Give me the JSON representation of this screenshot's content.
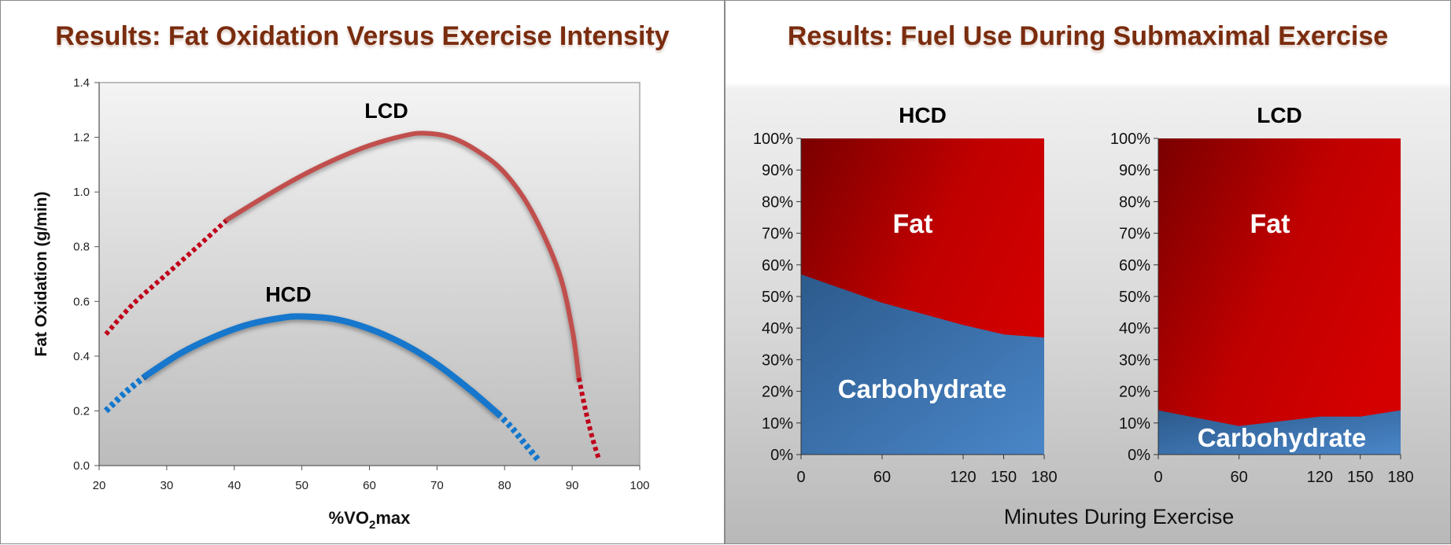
{
  "left_panel": {
    "title": "Results: Fat Oxidation Versus Exercise Intensity"
  },
  "right_panel": {
    "title": "Results: Fuel Use During Submaximal Exercise"
  },
  "colors": {
    "lcd_line": "#c0504d",
    "lcd_dotted": "#c0001a",
    "hcd_line": "#1277cc",
    "fat_fill": "#c00000",
    "carb_fill": "#3a6ea8",
    "title_color": "#7a2c0e"
  },
  "chart_data": [
    {
      "type": "line",
      "title": "",
      "xlabel": "%VO2max",
      "xlabel_main": "%VO",
      "xlabel_sub": "2",
      "xlabel_tail": "max",
      "ylabel": "Fat Oxidation (g/min)",
      "xlim": [
        20,
        100
      ],
      "ylim": [
        0,
        1.4
      ],
      "xticks": [
        20,
        30,
        40,
        50,
        60,
        70,
        80,
        90,
        100
      ],
      "yticks": [
        "0.0",
        "0.2",
        "0.4",
        "0.6",
        "0.8",
        "1.0",
        "1.2",
        "1.4"
      ],
      "grid": false,
      "series": [
        {
          "name": "LCD",
          "dotted_start": [
            [
              21,
              0.48
            ],
            [
              25,
              0.59
            ],
            [
              30,
              0.7
            ],
            [
              35,
              0.81
            ],
            [
              39,
              0.9
            ]
          ],
          "solid": [
            [
              39,
              0.9
            ],
            [
              45,
              0.99
            ],
            [
              50,
              1.06
            ],
            [
              55,
              1.12
            ],
            [
              60,
              1.17
            ],
            [
              65,
              1.205
            ],
            [
              68,
              1.215
            ],
            [
              72,
              1.2
            ],
            [
              76,
              1.15
            ],
            [
              80,
              1.07
            ],
            [
              84,
              0.93
            ],
            [
              88,
              0.71
            ],
            [
              90,
              0.5
            ],
            [
              91,
              0.32
            ]
          ],
          "dotted_end": [
            [
              91,
              0.32
            ],
            [
              92,
              0.2
            ],
            [
              93,
              0.1
            ],
            [
              94,
              0.02
            ]
          ]
        },
        {
          "name": "HCD",
          "dotted_start": [
            [
              21,
              0.2
            ],
            [
              24,
              0.27
            ],
            [
              27,
              0.33
            ]
          ],
          "solid": [
            [
              27,
              0.33
            ],
            [
              32,
              0.41
            ],
            [
              37,
              0.47
            ],
            [
              42,
              0.515
            ],
            [
              47,
              0.54
            ],
            [
              50,
              0.545
            ],
            [
              55,
              0.535
            ],
            [
              60,
              0.5
            ],
            [
              65,
              0.445
            ],
            [
              70,
              0.37
            ],
            [
              75,
              0.275
            ],
            [
              79,
              0.19
            ]
          ],
          "dotted_end": [
            [
              79,
              0.19
            ],
            [
              81,
              0.14
            ],
            [
              83,
              0.08
            ],
            [
              85,
              0.02
            ]
          ]
        }
      ]
    },
    {
      "type": "area",
      "title": "HCD",
      "x": [
        0,
        60,
        120,
        150,
        180
      ],
      "xticks": [
        "0",
        "60",
        "120",
        "150",
        "180"
      ],
      "yticks": [
        "0%",
        "10%",
        "20%",
        "30%",
        "40%",
        "50%",
        "60%",
        "70%",
        "80%",
        "90%",
        "100%"
      ],
      "ylim": [
        0,
        100
      ],
      "series": [
        {
          "name": "Carbohydrate",
          "values": [
            57,
            48,
            41,
            38,
            37
          ]
        },
        {
          "name": "Fat",
          "values": [
            43,
            52,
            59,
            62,
            63
          ]
        }
      ]
    },
    {
      "type": "area",
      "title": "LCD",
      "x": [
        0,
        60,
        120,
        150,
        180
      ],
      "xticks": [
        "0",
        "60",
        "120",
        "150",
        "180"
      ],
      "yticks": [
        "0%",
        "10%",
        "20%",
        "30%",
        "40%",
        "50%",
        "60%",
        "70%",
        "80%",
        "90%",
        "100%"
      ],
      "ylim": [
        0,
        100
      ],
      "series": [
        {
          "name": "Carbohydrate",
          "values": [
            14,
            9,
            12,
            12,
            14
          ]
        },
        {
          "name": "Fat",
          "values": [
            86,
            91,
            88,
            88,
            86
          ]
        }
      ]
    }
  ],
  "shared_xlabel": "Minutes During Exercise"
}
